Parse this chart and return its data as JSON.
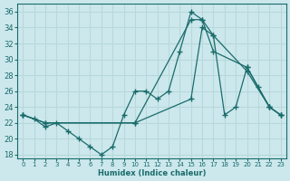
{
  "xlabel": "Humidex (Indice chaleur)",
  "background_color": "#cce8ec",
  "line_color": "#1a6b6b",
  "grid_color": "#b8d8dc",
  "xlim": [
    -0.5,
    23.5
  ],
  "ylim": [
    17.5,
    37
  ],
  "xticks": [
    0,
    1,
    2,
    3,
    4,
    5,
    6,
    7,
    8,
    9,
    10,
    11,
    12,
    13,
    14,
    15,
    16,
    17,
    18,
    19,
    20,
    21,
    22,
    23
  ],
  "yticks": [
    18,
    20,
    22,
    24,
    26,
    28,
    30,
    32,
    34,
    36
  ],
  "series1_x": [
    0,
    1,
    2,
    3,
    4,
    5,
    6,
    7,
    8,
    9,
    10,
    11,
    12,
    13,
    14,
    15,
    16,
    17,
    18,
    19,
    20,
    21,
    22,
    23
  ],
  "series1_y": [
    23,
    22.5,
    21.5,
    22,
    21,
    20,
    19,
    18,
    19,
    23,
    26,
    26,
    25,
    26,
    31,
    36,
    35,
    33,
    23,
    24,
    29,
    26.5,
    24,
    23
  ],
  "series2_x": [
    0,
    2,
    10,
    15,
    16,
    17,
    20,
    22,
    23
  ],
  "series2_y": [
    23,
    22,
    22,
    35,
    35,
    31,
    29,
    24,
    23
  ],
  "series3_x": [
    0,
    2,
    10,
    15,
    16,
    17,
    20,
    22,
    23
  ],
  "series3_y": [
    23,
    22,
    22,
    25,
    34,
    33,
    28.5,
    24,
    23
  ]
}
